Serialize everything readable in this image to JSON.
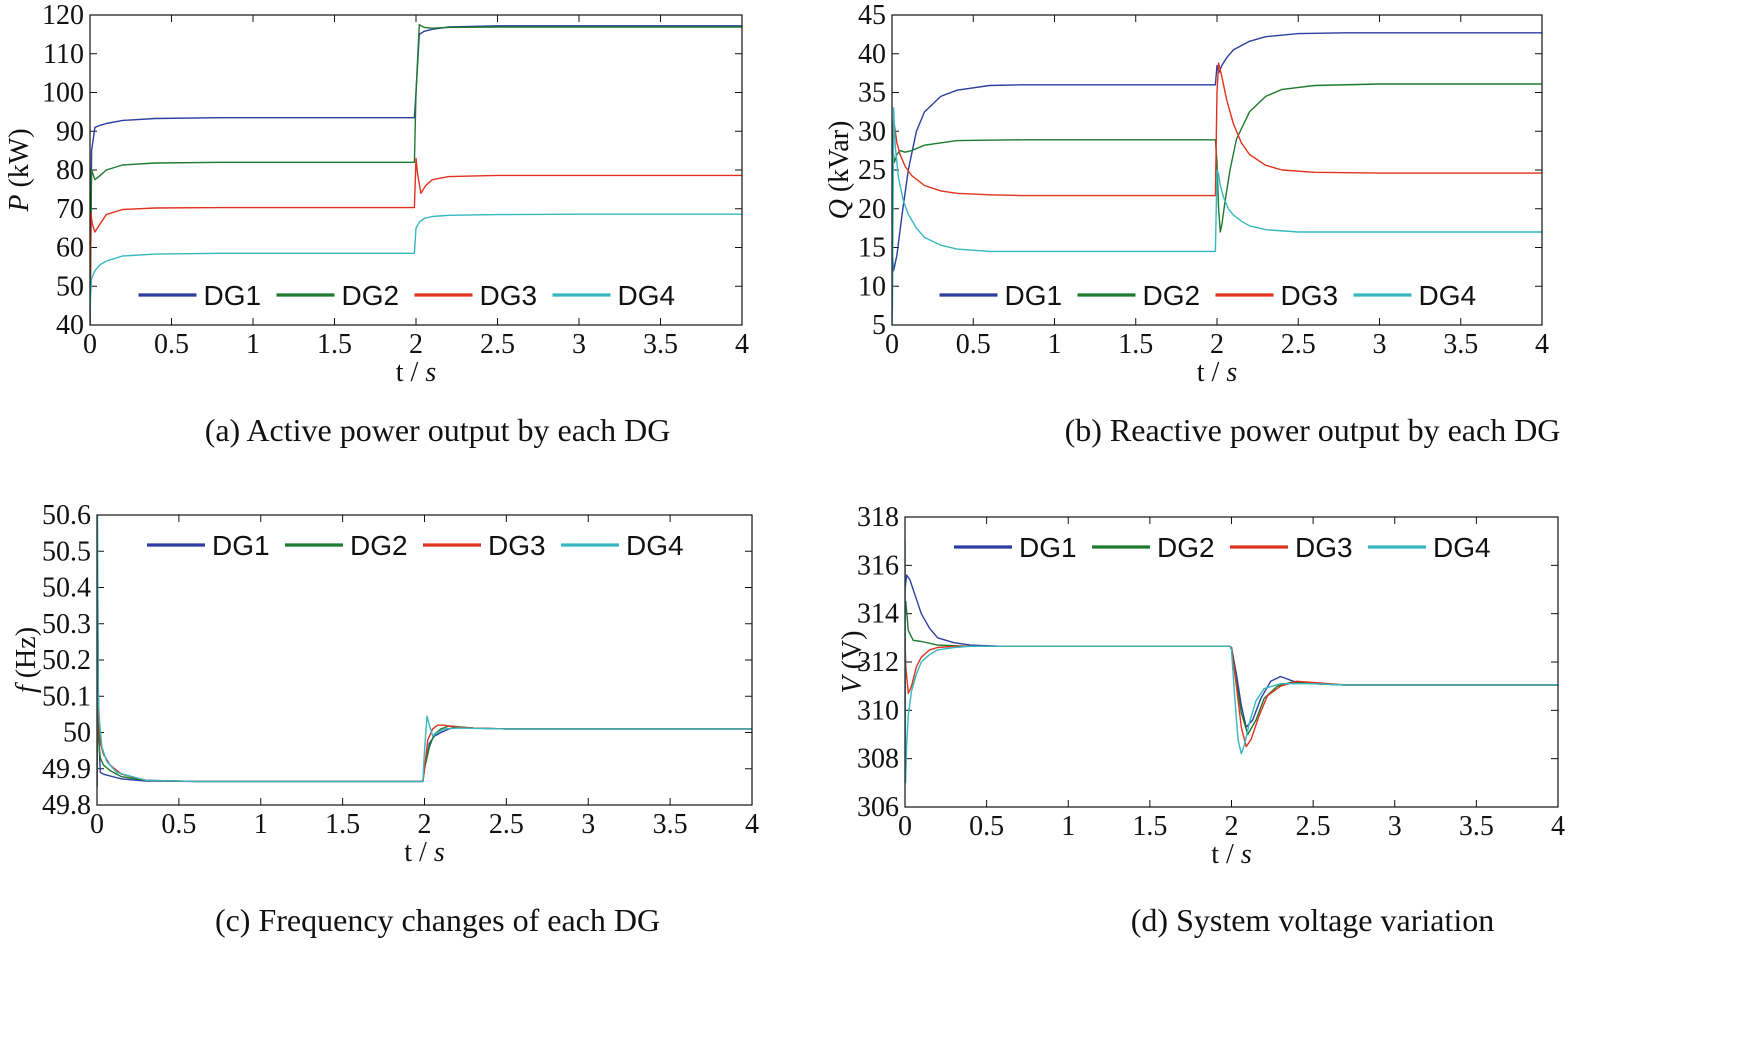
{
  "figure": {
    "colors": {
      "DG1": "#2a3fa0",
      "DG2": "#1e7a2e",
      "DG3": "#e0321e",
      "DG4": "#36b8c0"
    }
  },
  "chart_data": [
    {
      "id": "a",
      "type": "line",
      "caption": "(a) Active power output by each DG",
      "xlabel": "t / s",
      "ylabel": "P (kW)",
      "ylabel_var": "P",
      "ylabel_unit": " (kW)",
      "xlim": [
        0,
        4
      ],
      "ylim": [
        40,
        120
      ],
      "xticks": [
        0,
        0.5,
        1,
        1.5,
        2,
        2.5,
        3,
        3.5,
        4
      ],
      "yticks": [
        40,
        50,
        60,
        70,
        80,
        90,
        100,
        110,
        120
      ],
      "legend": "bottom",
      "series": [
        {
          "name": "DG1",
          "x": [
            0,
            0.01,
            0.03,
            0.06,
            0.1,
            0.2,
            0.4,
            0.8,
            1.2,
            1.6,
            1.99,
            2.0,
            2.02,
            2.05,
            2.1,
            2.2,
            2.5,
            3,
            4
          ],
          "y": [
            40,
            85,
            91,
            91.5,
            92,
            92.8,
            93.3,
            93.5,
            93.5,
            93.5,
            93.5,
            100,
            115,
            115.8,
            116.3,
            116.9,
            117.2,
            117.2,
            117.2
          ]
        },
        {
          "name": "DG2",
          "x": [
            0,
            0.01,
            0.03,
            0.06,
            0.1,
            0.2,
            0.4,
            0.8,
            1.2,
            1.6,
            1.99,
            2.0,
            2.02,
            2.05,
            2.1,
            2.2,
            2.5,
            3,
            4
          ],
          "y": [
            40,
            80,
            77.5,
            78.5,
            80,
            81.3,
            81.8,
            82,
            82,
            82,
            82,
            100,
            117.5,
            116.8,
            116.6,
            116.8,
            116.9,
            116.9,
            116.9
          ]
        },
        {
          "name": "DG3",
          "x": [
            0,
            0.005,
            0.015,
            0.03,
            0.06,
            0.1,
            0.2,
            0.4,
            0.8,
            1.2,
            1.6,
            1.99,
            2.0,
            2.01,
            2.03,
            2.06,
            2.1,
            2.2,
            2.5,
            3,
            4
          ],
          "y": [
            40,
            69,
            66,
            64,
            66,
            68.5,
            69.8,
            70.2,
            70.3,
            70.3,
            70.3,
            70.3,
            83,
            79,
            74,
            76,
            77.5,
            78.3,
            78.6,
            78.6,
            78.6
          ]
        },
        {
          "name": "DG4",
          "x": [
            0,
            0.003,
            0.01,
            0.03,
            0.06,
            0.1,
            0.2,
            0.4,
            0.8,
            1.2,
            1.6,
            1.99,
            2.0,
            2.02,
            2.05,
            2.1,
            2.2,
            2.5,
            3,
            4
          ],
          "y": [
            40,
            47,
            52,
            54,
            55.5,
            56.5,
            57.8,
            58.3,
            58.5,
            58.5,
            58.5,
            58.5,
            65,
            66.5,
            67.5,
            68,
            68.3,
            68.5,
            68.6,
            68.6
          ]
        }
      ]
    },
    {
      "id": "b",
      "type": "line",
      "caption": "(b) Reactive power output by each DG",
      "xlabel": "t / s",
      "ylabel": "Q (kVar)",
      "ylabel_var": "Q",
      "ylabel_unit": " (kVar)",
      "xlim": [
        0,
        4
      ],
      "ylim": [
        5,
        45
      ],
      "xticks": [
        0,
        0.5,
        1,
        1.5,
        2,
        2.5,
        3,
        3.5,
        4
      ],
      "yticks": [
        5,
        10,
        15,
        20,
        25,
        30,
        35,
        40,
        45
      ],
      "legend": "bottom",
      "series": [
        {
          "name": "DG1",
          "x": [
            0,
            0.01,
            0.03,
            0.06,
            0.1,
            0.15,
            0.2,
            0.3,
            0.4,
            0.6,
            0.8,
            1.2,
            1.99,
            2.0,
            2.01,
            2.03,
            2.06,
            2.1,
            2.2,
            2.3,
            2.5,
            2.8,
            3.2,
            4
          ],
          "y": [
            15,
            12,
            14,
            19,
            25,
            30,
            32.5,
            34.5,
            35.3,
            35.9,
            36,
            36,
            36,
            38.5,
            37.5,
            38.5,
            39.5,
            40.5,
            41.6,
            42.2,
            42.6,
            42.7,
            42.7,
            42.7
          ]
        },
        {
          "name": "DG2",
          "x": [
            0,
            0.005,
            0.015,
            0.03,
            0.05,
            0.08,
            0.12,
            0.2,
            0.4,
            0.8,
            1.2,
            1.99,
            2.0,
            2.01,
            2.02,
            2.03,
            2.05,
            2.08,
            2.12,
            2.2,
            2.3,
            2.4,
            2.6,
            3,
            4
          ],
          "y": [
            20,
            28,
            26,
            27,
            27.5,
            27.3,
            27.5,
            28.2,
            28.8,
            28.9,
            28.9,
            28.9,
            26,
            20,
            17,
            18,
            21,
            25,
            29,
            32.5,
            34.5,
            35.4,
            35.9,
            36.1,
            36.1
          ]
        },
        {
          "name": "DG3",
          "x": [
            0,
            0.01,
            0.02,
            0.03,
            0.05,
            0.08,
            0.12,
            0.2,
            0.3,
            0.4,
            0.6,
            0.8,
            1.2,
            1.99,
            2.0,
            2.01,
            2.03,
            2.06,
            2.1,
            2.15,
            2.2,
            2.3,
            2.4,
            2.6,
            3,
            4
          ],
          "y": [
            25,
            31.5,
            30,
            28.5,
            27,
            25.5,
            24.3,
            23,
            22.3,
            22,
            21.8,
            21.7,
            21.7,
            21.7,
            35,
            38.8,
            37,
            34,
            31,
            28.5,
            27,
            25.6,
            25,
            24.7,
            24.6,
            24.6
          ]
        },
        {
          "name": "DG4",
          "x": [
            0,
            0.003,
            0.01,
            0.02,
            0.04,
            0.07,
            0.1,
            0.15,
            0.2,
            0.3,
            0.4,
            0.6,
            0.8,
            1.2,
            1.99,
            2.0,
            2.01,
            2.02,
            2.04,
            2.07,
            2.1,
            2.15,
            2.2,
            2.3,
            2.5,
            3,
            4
          ],
          "y": [
            5,
            8,
            33,
            28,
            24,
            21,
            19.3,
            17.5,
            16.3,
            15.3,
            14.8,
            14.5,
            14.5,
            14.5,
            14.5,
            25,
            24.5,
            23,
            21.5,
            20,
            19.2,
            18.4,
            17.8,
            17.3,
            17,
            17,
            17
          ]
        }
      ]
    },
    {
      "id": "c",
      "type": "line",
      "caption": "(c) Frequency changes of each DG",
      "xlabel": "t / s",
      "ylabel": "f (Hz)",
      "ylabel_var": "f",
      "ylabel_unit": " (Hz)",
      "xlim": [
        0,
        4
      ],
      "ylim": [
        49.8,
        50.6
      ],
      "xticks": [
        0,
        0.5,
        1,
        1.5,
        2,
        2.5,
        3,
        3.5,
        4
      ],
      "yticks": [
        49.8,
        49.9,
        50,
        50.1,
        50.2,
        50.3,
        50.4,
        50.5,
        50.6
      ],
      "ytick_labels": [
        "49.8",
        "49.9",
        "50",
        "50.1",
        "50.2",
        "50.3",
        "50.4",
        "50.5",
        "50.6"
      ],
      "legend": "top",
      "series": [
        {
          "name": "DG1",
          "x": [
            0,
            0.005,
            0.01,
            0.02,
            0.04,
            0.08,
            0.15,
            0.3,
            0.6,
            1,
            1.99,
            2.0,
            2.03,
            2.06,
            2.1,
            2.15,
            2.2,
            2.3,
            2.5,
            3,
            4
          ],
          "y": [
            49.85,
            50.38,
            50.0,
            49.89,
            49.885,
            49.88,
            49.872,
            49.866,
            49.865,
            49.865,
            49.865,
            49.9,
            49.97,
            49.99,
            50.0,
            50.01,
            50.015,
            50.012,
            50.01,
            50.01,
            50.01
          ]
        },
        {
          "name": "DG2",
          "x": [
            0,
            0.005,
            0.01,
            0.02,
            0.04,
            0.08,
            0.15,
            0.3,
            0.6,
            1,
            1.99,
            2.0,
            2.03,
            2.06,
            2.1,
            2.15,
            2.2,
            2.3,
            2.5,
            3,
            4
          ],
          "y": [
            49.85,
            50.2,
            49.98,
            49.93,
            49.91,
            49.895,
            49.878,
            49.868,
            49.865,
            49.865,
            49.865,
            49.9,
            49.96,
            49.995,
            50.01,
            50.018,
            50.016,
            50.012,
            50.01,
            50.01,
            50.01
          ]
        },
        {
          "name": "DG3",
          "x": [
            0,
            0.005,
            0.01,
            0.02,
            0.04,
            0.08,
            0.15,
            0.3,
            0.6,
            1,
            1.99,
            2.0,
            2.02,
            2.05,
            2.08,
            2.12,
            2.18,
            2.3,
            2.5,
            3,
            4
          ],
          "y": [
            49.85,
            50.28,
            50.05,
            49.97,
            49.94,
            49.91,
            49.885,
            49.868,
            49.865,
            49.865,
            49.865,
            49.9,
            49.98,
            50.01,
            50.02,
            50.02,
            50.015,
            50.012,
            50.01,
            50.01,
            50.01
          ]
        },
        {
          "name": "DG4",
          "x": [
            0,
            0.003,
            0.008,
            0.015,
            0.03,
            0.06,
            0.12,
            0.3,
            0.6,
            1,
            1.99,
            2.0,
            2.015,
            2.03,
            2.05,
            2.08,
            2.12,
            2.2,
            2.5,
            3,
            4
          ],
          "y": [
            49.85,
            50.6,
            50.1,
            50.03,
            49.96,
            49.92,
            49.89,
            49.868,
            49.865,
            49.865,
            49.865,
            49.95,
            50.045,
            50.02,
            49.99,
            50.0,
            50.01,
            50.012,
            50.01,
            50.01,
            50.01
          ]
        }
      ]
    },
    {
      "id": "d",
      "type": "line",
      "caption": "(d) System voltage variation",
      "xlabel": "t / s",
      "ylabel": "V (V)",
      "ylabel_var": "V",
      "ylabel_unit": " (V)",
      "xlim": [
        0,
        4
      ],
      "ylim": [
        306,
        318
      ],
      "xticks": [
        0,
        0.5,
        1,
        1.5,
        2,
        2.5,
        3,
        3.5,
        4
      ],
      "yticks": [
        306,
        308,
        310,
        312,
        314,
        316,
        318
      ],
      "legend": "top",
      "series": [
        {
          "name": "DG1",
          "x": [
            0,
            0.01,
            0.03,
            0.06,
            0.1,
            0.15,
            0.2,
            0.3,
            0.4,
            0.6,
            1,
            1.99,
            2.0,
            2.03,
            2.06,
            2.09,
            2.13,
            2.18,
            2.24,
            2.3,
            2.38,
            2.5,
            2.7,
            3,
            4
          ],
          "y": [
            315,
            315.6,
            315.4,
            314.8,
            314.0,
            313.4,
            313.0,
            312.8,
            312.7,
            312.65,
            312.65,
            312.65,
            312.6,
            311.5,
            310.2,
            309.3,
            309.6,
            310.5,
            311.2,
            311.4,
            311.2,
            311.1,
            311.05,
            311.05,
            311.05
          ]
        },
        {
          "name": "DG2",
          "x": [
            0,
            0.005,
            0.02,
            0.05,
            0.1,
            0.2,
            0.4,
            0.6,
            1,
            1.99,
            2.0,
            2.03,
            2.06,
            2.1,
            2.15,
            2.2,
            2.28,
            2.36,
            2.5,
            2.7,
            3,
            4
          ],
          "y": [
            314,
            314.5,
            313.3,
            312.9,
            312.85,
            312.7,
            312.65,
            312.65,
            312.65,
            312.65,
            312.6,
            311.2,
            309.9,
            309.0,
            309.6,
            310.5,
            311.0,
            311.15,
            311.1,
            311.05,
            311.05,
            311.05
          ]
        },
        {
          "name": "DG3",
          "x": [
            0,
            0.005,
            0.02,
            0.04,
            0.07,
            0.1,
            0.15,
            0.2,
            0.3,
            0.4,
            0.6,
            1,
            1.99,
            2.0,
            2.03,
            2.06,
            2.09,
            2.12,
            2.17,
            2.22,
            2.3,
            2.4,
            2.5,
            2.7,
            3,
            4
          ],
          "y": [
            313,
            311.8,
            310.7,
            311.0,
            311.8,
            312.2,
            312.5,
            312.6,
            312.65,
            312.65,
            312.65,
            312.65,
            312.65,
            312.6,
            311.0,
            309.3,
            308.5,
            308.8,
            309.8,
            310.6,
            311.0,
            311.2,
            311.15,
            311.05,
            311.05,
            311.05
          ]
        },
        {
          "name": "DG4",
          "x": [
            0,
            0.003,
            0.01,
            0.02,
            0.04,
            0.07,
            0.1,
            0.15,
            0.2,
            0.3,
            0.4,
            0.6,
            1,
            1.99,
            2.0,
            2.02,
            2.04,
            2.06,
            2.08,
            2.11,
            2.15,
            2.2,
            2.3,
            2.5,
            2.7,
            3,
            4
          ],
          "y": [
            317,
            307,
            308.5,
            309.8,
            310.8,
            311.5,
            312.0,
            312.3,
            312.5,
            312.6,
            312.65,
            312.65,
            312.65,
            312.65,
            312.5,
            310.5,
            308.8,
            308.2,
            308.6,
            309.5,
            310.4,
            310.9,
            311.1,
            311.1,
            311.05,
            311.05,
            311.05
          ]
        }
      ]
    }
  ]
}
